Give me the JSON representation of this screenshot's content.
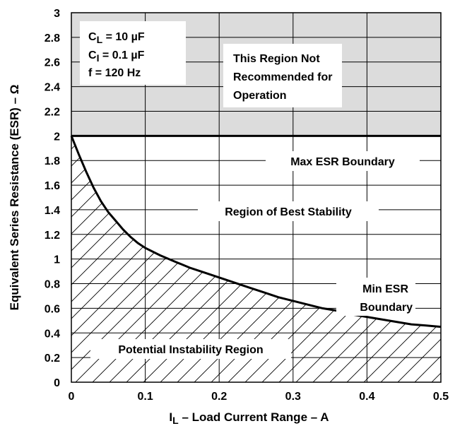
{
  "chart_data": {
    "type": "line",
    "title": "",
    "xlabel": "I_L – Load Current Range – A",
    "ylabel": "Equivalent Series Resistance (ESR) – Ω",
    "xlim": [
      0,
      0.5
    ],
    "ylim": [
      0,
      3
    ],
    "x_ticks": [
      "0",
      "0.1",
      "0.2",
      "0.3",
      "0.4",
      "0.5"
    ],
    "y_ticks": [
      "0",
      "0.2",
      "0.4",
      "0.6",
      "0.8",
      "1",
      "1.2",
      "1.4",
      "1.6",
      "1.8",
      "2",
      "2.2",
      "2.4",
      "2.6",
      "2.8",
      "3"
    ],
    "grid": true,
    "conditions": {
      "cl": "C_L = 10 µF",
      "ci": "C_I = 0.1 µF",
      "freq": "f = 120 Hz"
    },
    "series": [
      {
        "name": "Max ESR Boundary",
        "x": [
          0,
          0.5
        ],
        "y": [
          2.0,
          2.0
        ]
      },
      {
        "name": "Min ESR Boundary",
        "x": [
          0.0,
          0.01,
          0.02,
          0.03,
          0.04,
          0.05,
          0.06,
          0.07,
          0.08,
          0.09,
          0.1,
          0.12,
          0.14,
          0.16,
          0.18,
          0.2,
          0.22,
          0.24,
          0.26,
          0.28,
          0.3,
          0.32,
          0.34,
          0.36,
          0.38,
          0.4,
          0.42,
          0.44,
          0.46,
          0.48,
          0.5
        ],
        "y": [
          2.0,
          1.85,
          1.71,
          1.58,
          1.47,
          1.38,
          1.31,
          1.24,
          1.18,
          1.13,
          1.09,
          1.03,
          0.98,
          0.93,
          0.89,
          0.85,
          0.81,
          0.77,
          0.73,
          0.69,
          0.66,
          0.63,
          0.6,
          0.58,
          0.55,
          0.53,
          0.51,
          0.49,
          0.47,
          0.46,
          0.45
        ]
      }
    ],
    "regions": {
      "not_recommended": [
        "This Region Not",
        "Recommended for",
        "Operation"
      ],
      "best_stability": "Region of Best Stability",
      "instability": "Potential Instability Region",
      "max_label": "Max ESR Boundary",
      "min_label": [
        "Min ESR",
        "Boundary"
      ]
    }
  }
}
